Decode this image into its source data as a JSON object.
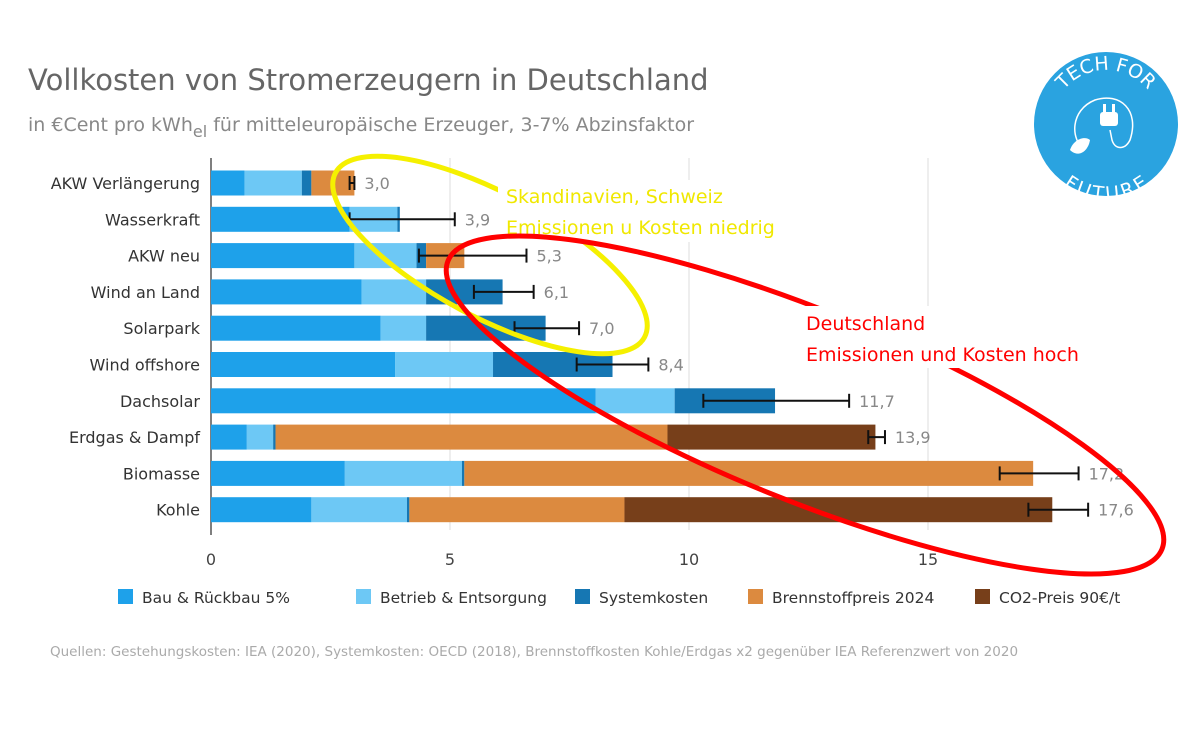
{
  "chart_data": {
    "type": "bar",
    "orientation": "horizontal",
    "stacked": true,
    "title": "Vollkosten von Stromerzeugern in Deutschland",
    "subtitle_pre": "in €Cent pro kWh",
    "subtitle_sub": "el",
    "subtitle_post": " für mitteleuropäische Erzeuger, 3-7% Abzinsfaktor",
    "xlim": [
      0,
      18
    ],
    "xticks": [
      0,
      5,
      10,
      15
    ],
    "grid": true,
    "legend_placement": "bottom",
    "categories": [
      "AKW Verlängerung",
      "Wasserkraft",
      "AKW neu",
      "Wind an Land",
      "Solarpark",
      "Wind offshore",
      "Dachsolar",
      "Erdgas & Dampf",
      "Biomasse",
      "Kohle"
    ],
    "series": [
      {
        "name": "Bau & Rückbau 5%",
        "color": "#1ea1ea",
        "values": [
          0.7,
          2.9,
          3.0,
          3.15,
          3.55,
          3.85,
          8.05,
          0.75,
          2.8,
          2.1
        ]
      },
      {
        "name": "Betrieb & Entsorgung",
        "color": "#6dc8f5",
        "values": [
          1.2,
          1.0,
          1.3,
          1.35,
          0.95,
          2.05,
          1.65,
          0.55,
          2.45,
          2.0
        ]
      },
      {
        "name": "Systemkosten",
        "color": "#1677b3",
        "values": [
          0.2,
          0.05,
          0.2,
          1.6,
          2.5,
          2.5,
          2.1,
          0.05,
          0.05,
          0.05
        ]
      },
      {
        "name": "Brennstoffpreis 2024",
        "color": "#dc8a3f",
        "values": [
          0.9,
          0,
          0.8,
          0,
          0,
          0,
          0,
          8.2,
          11.9,
          4.5
        ]
      },
      {
        "name": "CO2-Preis 90€/t",
        "color": "#773f1a",
        "values": [
          0,
          0,
          0,
          0,
          0,
          0,
          0,
          4.35,
          0,
          8.95
        ]
      }
    ],
    "totals": [
      "3,0",
      "3,9",
      "5,3",
      "6,1",
      "7,0",
      "8,4",
      "11,7",
      "13,9",
      "17,2",
      "17,6"
    ],
    "error_ranges": [
      [
        2.9,
        3.0
      ],
      [
        2.9,
        5.1
      ],
      [
        4.35,
        6.6
      ],
      [
        5.5,
        6.75
      ],
      [
        6.35,
        7.7
      ],
      [
        7.65,
        9.15
      ],
      [
        10.3,
        13.35
      ],
      [
        13.75,
        14.1
      ],
      [
        16.5,
        18.15
      ],
      [
        17.1,
        18.35
      ]
    ],
    "source": "Quellen: Gestehungskosten: IEA (2020), Systemkosten: OECD (2018), Brennstoffkosten Kohle/Erdgas x2 gegenüber IEA Referenzwert von 2020"
  },
  "annotations": {
    "yellow": {
      "color": "#f5f000",
      "line1": "Skandinavien, Schweiz",
      "line2": "Emissionen u Kosten niedrig"
    },
    "red": {
      "color": "#ff0000",
      "line1": "Deutschland",
      "line2": "Emissionen und Kosten hoch"
    }
  },
  "logo": {
    "text_top": "TECH FOR",
    "text_bottom": "FUTURE",
    "color": "#2aa3e0",
    "icon": "plug-leaf-icon"
  }
}
